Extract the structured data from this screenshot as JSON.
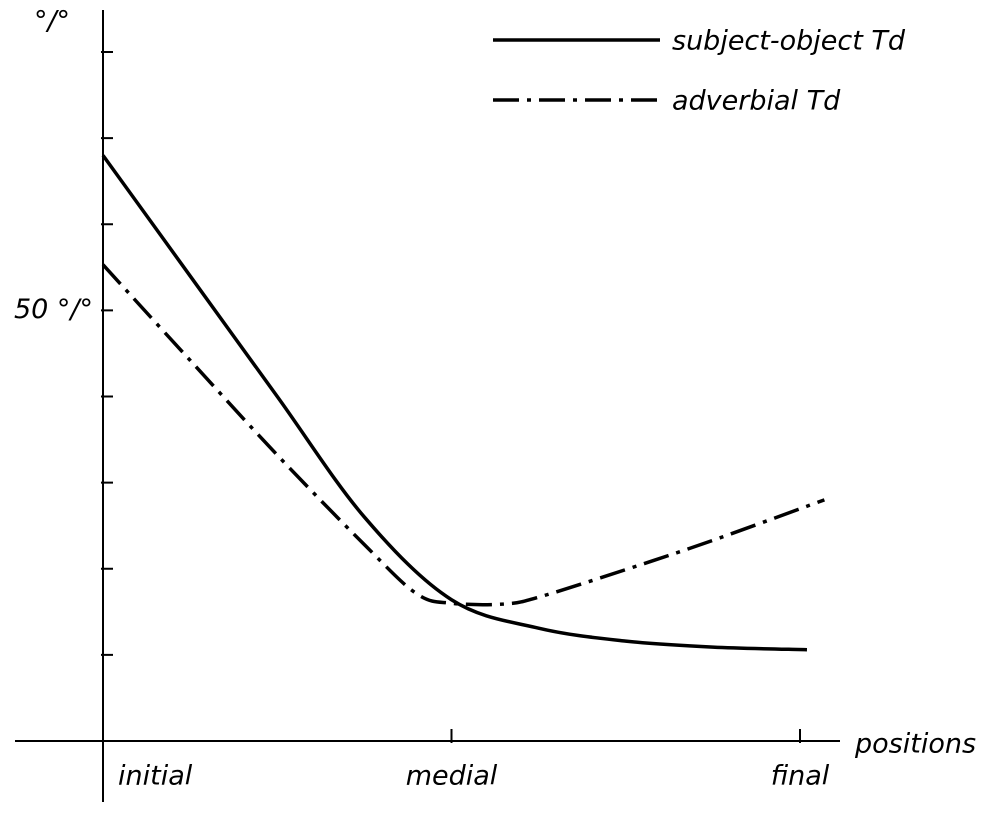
{
  "chart_data": {
    "type": "line",
    "y_label": "°/°",
    "x_label": "positions",
    "xlim": [
      0,
      2
    ],
    "ylim": [
      0,
      80
    ],
    "xticks": [
      {
        "value": 0,
        "label": "initial"
      },
      {
        "value": 1,
        "label": "medial"
      },
      {
        "value": 2,
        "label": "final"
      }
    ],
    "yticks": [
      {
        "value": 10,
        "label": null
      },
      {
        "value": 20,
        "label": null
      },
      {
        "value": 30,
        "label": null
      },
      {
        "value": 40,
        "label": null
      },
      {
        "value": 50,
        "label": "50 °/°"
      },
      {
        "value": 60,
        "label": null
      },
      {
        "value": 70,
        "label": null
      },
      {
        "value": 80,
        "label": null
      }
    ],
    "legend": "upper right",
    "series": [
      {
        "name": "subject-object Td",
        "color": "#000000",
        "style": "solid",
        "x": [
          0,
          0.25,
          0.5,
          0.75,
          1.0,
          1.25,
          1.5,
          1.75,
          2.02
        ],
        "values": [
          68,
          54,
          40,
          26,
          16.4,
          13.1,
          11.6,
          10.9,
          10.6
        ]
      },
      {
        "name": "adverbial Td",
        "color": "#000000",
        "style": "dashdot",
        "x": [
          0,
          0.25,
          0.5,
          0.75,
          0.9,
          1.0,
          1.15,
          1.25,
          1.5,
          1.75,
          2.07
        ],
        "values": [
          55.3,
          44.2,
          33.2,
          22.8,
          17.1,
          16.0,
          15.9,
          16.7,
          19.9,
          23.3,
          28
        ]
      }
    ]
  }
}
